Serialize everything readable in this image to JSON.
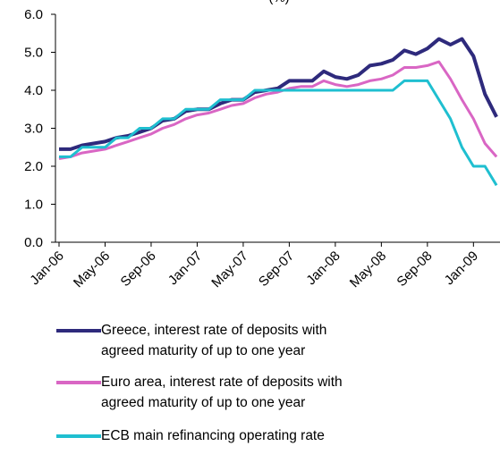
{
  "chart_data": {
    "type": "line",
    "title": "(%)",
    "categories": [
      "Jan-06",
      null,
      null,
      null,
      "May-06",
      null,
      null,
      null,
      "Sep-06",
      null,
      null,
      null,
      "Jan-07",
      null,
      null,
      null,
      "May-07",
      null,
      null,
      null,
      "Sep-07",
      null,
      null,
      null,
      "Jan-08",
      null,
      null,
      null,
      "May-08",
      null,
      null,
      null,
      "Sep-08",
      null,
      null,
      null,
      "Jan-09",
      null,
      null
    ],
    "series": [
      {
        "name": "Greece, interest rate of deposits with agreed maturity of up to one year",
        "color": "#2e2a7c",
        "values": [
          2.45,
          2.45,
          2.55,
          2.6,
          2.65,
          2.75,
          2.8,
          2.9,
          3.0,
          3.2,
          3.25,
          3.45,
          3.5,
          3.5,
          3.65,
          3.75,
          3.75,
          3.95,
          4.0,
          4.05,
          4.25,
          4.25,
          4.25,
          4.5,
          4.35,
          4.3,
          4.4,
          4.65,
          4.7,
          4.8,
          5.05,
          4.95,
          5.1,
          5.35,
          5.2,
          5.35,
          4.9,
          3.9,
          3.3
        ]
      },
      {
        "name": "Euro area, interest rate of deposits with agreed maturity of up to one year",
        "color": "#d966c4",
        "values": [
          2.2,
          2.25,
          2.35,
          2.4,
          2.45,
          2.55,
          2.65,
          2.75,
          2.85,
          3.0,
          3.1,
          3.25,
          3.35,
          3.4,
          3.5,
          3.6,
          3.65,
          3.8,
          3.9,
          3.95,
          4.05,
          4.1,
          4.1,
          4.25,
          4.15,
          4.1,
          4.15,
          4.25,
          4.3,
          4.4,
          4.6,
          4.6,
          4.65,
          4.75,
          4.3,
          3.75,
          3.25,
          2.6,
          2.25
        ]
      },
      {
        "name": "ECB main refinancing operating rate",
        "color": "#1fbfd0",
        "values": [
          2.25,
          2.25,
          2.5,
          2.5,
          2.5,
          2.75,
          2.75,
          3.0,
          3.0,
          3.25,
          3.25,
          3.5,
          3.5,
          3.5,
          3.75,
          3.75,
          3.75,
          4.0,
          4.0,
          4.0,
          4.0,
          4.0,
          4.0,
          4.0,
          4.0,
          4.0,
          4.0,
          4.0,
          4.0,
          4.0,
          4.25,
          4.25,
          4.25,
          3.75,
          3.25,
          2.5,
          2.0,
          2.0,
          1.5
        ]
      }
    ],
    "ylim": [
      0,
      6
    ],
    "yticks": [
      {
        "value": 0,
        "label": "0.0"
      },
      {
        "value": 1,
        "label": "1.0"
      },
      {
        "value": 2,
        "label": "2.0"
      },
      {
        "value": 3,
        "label": "3.0"
      },
      {
        "value": 4,
        "label": "4.0"
      },
      {
        "value": 5,
        "label": "5.0"
      },
      {
        "value": 6,
        "label": "6.0"
      }
    ],
    "grid": false
  }
}
